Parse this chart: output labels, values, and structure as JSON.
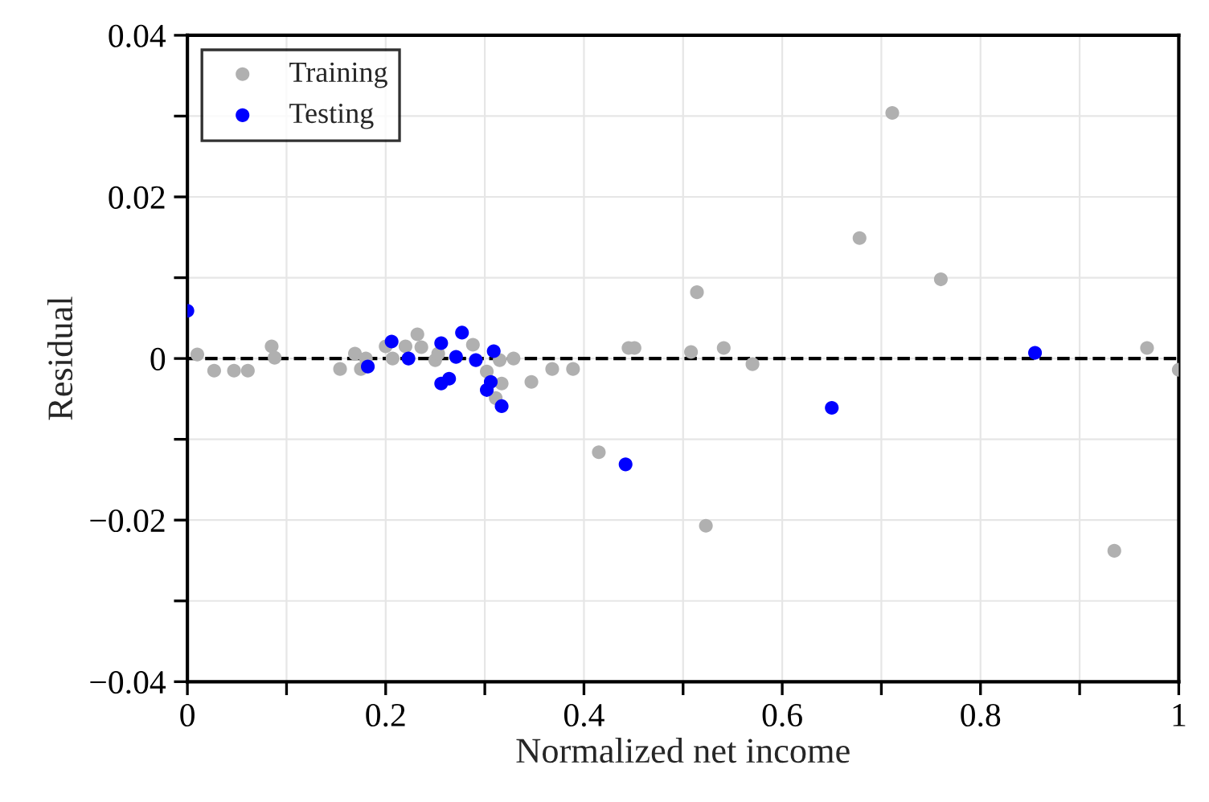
{
  "chart_data": {
    "type": "scatter",
    "xlabel": "Normalized net income",
    "ylabel": "Residual",
    "xlim": [
      0,
      1
    ],
    "ylim": [
      -0.04,
      0.04
    ],
    "xticks": [
      0,
      {
        "value": 0.1,
        "label": null
      },
      0.2,
      {
        "value": 0.3,
        "label": null
      },
      0.4,
      {
        "value": 0.5,
        "label": null
      },
      0.6,
      {
        "value": 0.7,
        "label": null
      },
      0.8,
      {
        "value": 0.9,
        "label": null
      },
      1
    ],
    "yticks": [
      {
        "value": -0.04,
        "label": "−0.04"
      },
      {
        "value": -0.03,
        "label": null
      },
      {
        "value": -0.02,
        "label": "−0.02"
      },
      {
        "value": -0.01,
        "label": null
      },
      0,
      {
        "value": 0.01,
        "label": null
      },
      0.02,
      {
        "value": 0.03,
        "label": null
      },
      0.04
    ],
    "grid": true,
    "legend": "top left",
    "marker": "circle",
    "ref_lines": [
      {
        "axis": "y",
        "value": 0,
        "color": "#000000",
        "line_style": "dashed"
      }
    ],
    "series": [
      {
        "name": "Training",
        "color": "#b0b0b0",
        "x": [
          0.01,
          0.027,
          0.047,
          0.061,
          0.085,
          0.088,
          0.154,
          0.169,
          0.175,
          0.18,
          0.2,
          0.207,
          0.22,
          0.232,
          0.236,
          0.25,
          0.253,
          0.288,
          0.302,
          0.317,
          0.311,
          0.315,
          0.329,
          0.347,
          0.368,
          0.389,
          0.415,
          0.445,
          0.451,
          0.514,
          0.508,
          0.523,
          0.541,
          0.57,
          0.678,
          0.711,
          0.76,
          0.935,
          0.968,
          1.0
        ],
        "values": [
          0.0005,
          -0.0015,
          -0.0015,
          -0.0015,
          0.0015,
          0.0001,
          -0.0013,
          0.0006,
          -0.0013,
          0.0,
          0.0015,
          0.0,
          0.0015,
          0.003,
          0.0014,
          -0.0002,
          0.0006,
          0.0017,
          -0.0016,
          -0.0031,
          -0.0049,
          -0.0002,
          0.0,
          -0.0029,
          -0.0013,
          -0.0013,
          -0.0116,
          0.0013,
          0.0013,
          0.0082,
          0.0008,
          -0.0207,
          0.0013,
          -0.0007,
          0.0149,
          0.0304,
          0.0098,
          -0.0238,
          0.0013,
          -0.0014
        ]
      },
      {
        "name": "Testing",
        "color": "#0000ff",
        "x": [
          0.0,
          0.206,
          0.223,
          0.182,
          0.256,
          0.277,
          0.271,
          0.256,
          0.264,
          0.291,
          0.309,
          0.306,
          0.302,
          0.317,
          0.442,
          0.65,
          0.855
        ],
        "values": [
          0.0059,
          0.0021,
          0.0,
          -0.001,
          0.0019,
          0.0032,
          0.0002,
          -0.0031,
          -0.0025,
          -0.0002,
          0.0009,
          -0.0029,
          -0.0039,
          -0.0059,
          -0.0131,
          -0.0061,
          0.0007
        ]
      }
    ]
  }
}
